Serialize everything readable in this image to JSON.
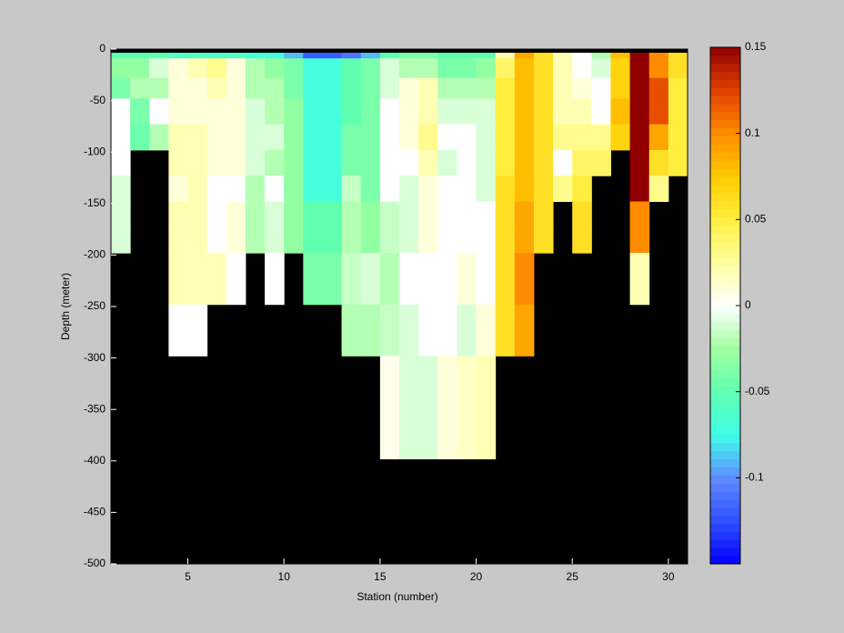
{
  "chart_data": {
    "type": "heatmap",
    "x_label": "Station (number)",
    "y_label": "Depth (meter)",
    "xlim": [
      1,
      31
    ],
    "ylim": [
      -500,
      0
    ],
    "xticks": [
      5,
      10,
      15,
      20,
      25,
      30
    ],
    "yticks": [
      0,
      -50,
      -100,
      -150,
      -200,
      -250,
      -300,
      -350,
      -400,
      -450,
      -500
    ],
    "x_edges": [
      1,
      2,
      3,
      4,
      5,
      6,
      7,
      8,
      9,
      10,
      11,
      12,
      13,
      14,
      15,
      16,
      17,
      18,
      19,
      20,
      21,
      22,
      23,
      24,
      25,
      26,
      27,
      28,
      29,
      30,
      31
    ],
    "y_edges": [
      -3.5,
      -9,
      -28,
      -48,
      -73,
      -98,
      -123,
      -148,
      -173,
      -198,
      -248,
      -298,
      -398
    ],
    "z": [
      [
        -0.05,
        -0.05,
        -0.05,
        -0.06,
        -0.06,
        -0.06,
        -0.06,
        -0.07,
        -0.07,
        -0.09,
        -0.12,
        -0.12,
        -0.11,
        -0.09,
        -0.05,
        -0.04,
        -0.04,
        -0.05,
        -0.05,
        -0.05,
        0.02,
        0.09,
        0.06,
        0.02,
        0,
        -0.02,
        0.08,
        0.15,
        0.1,
        0.06
      ],
      [
        -0.03,
        -0.03,
        -0.01,
        0.01,
        0.02,
        0.03,
        0.01,
        -0.02,
        -0.03,
        -0.04,
        -0.07,
        -0.07,
        -0.05,
        -0.04,
        -0.01,
        -0.02,
        -0.02,
        -0.04,
        -0.04,
        -0.03,
        0.04,
        0.08,
        0.06,
        0.02,
        0,
        -0.01,
        0.07,
        0.15,
        0.1,
        0.06
      ],
      [
        -0.04,
        -0.02,
        -0.02,
        0.01,
        0.01,
        0.02,
        0.01,
        -0.02,
        -0.02,
        -0.04,
        -0.07,
        -0.07,
        -0.05,
        -0.04,
        -0.01,
        0.01,
        0.02,
        -0.02,
        -0.02,
        -0.02,
        0.05,
        0.08,
        0.06,
        0.02,
        0.01,
        0,
        0.07,
        0.15,
        0.12,
        0.05
      ],
      [
        0,
        -0.04,
        0,
        0.01,
        0.01,
        0.01,
        0.01,
        -0.01,
        -0.02,
        -0.03,
        -0.07,
        -0.07,
        -0.05,
        -0.04,
        0,
        0.01,
        0.02,
        -0.01,
        -0.01,
        -0.01,
        0.05,
        0.08,
        0.06,
        0.02,
        0.02,
        0,
        0.08,
        0.15,
        0.12,
        0.05
      ],
      [
        0,
        -0.045,
        -0.02,
        0.02,
        0.02,
        0.01,
        0.01,
        -0.01,
        -0.01,
        -0.03,
        -0.07,
        -0.07,
        -0.04,
        -0.04,
        0,
        0.01,
        0.03,
        0,
        0,
        -0.01,
        0.05,
        0.08,
        0.06,
        0.03,
        0.03,
        0.03,
        0.07,
        0.15,
        0.09,
        0.05
      ],
      [
        0,
        null,
        null,
        0.02,
        0.02,
        0.01,
        0.01,
        -0.01,
        -0.02,
        -0.03,
        -0.07,
        -0.07,
        -0.04,
        -0.04,
        0,
        0,
        0.02,
        -0.01,
        0,
        -0.01,
        0.05,
        0.08,
        0.06,
        0,
        0.04,
        0.04,
        null,
        0.15,
        0.06,
        0.05
      ],
      [
        -0.01,
        null,
        null,
        0.01,
        0.02,
        0,
        0,
        -0.02,
        0,
        -0.03,
        -0.07,
        -0.07,
        -0.015,
        -0.04,
        0,
        -0.01,
        0.01,
        0,
        0,
        -0.01,
        0.06,
        0.08,
        0.06,
        0.03,
        0.05,
        null,
        null,
        0.15,
        0.03,
        null
      ],
      [
        -0.01,
        null,
        null,
        0.02,
        0.02,
        0,
        0.01,
        -0.02,
        -0.01,
        -0.03,
        -0.05,
        -0.05,
        -0.02,
        -0.03,
        -0.015,
        -0.01,
        0.01,
        0,
        0,
        0,
        0.06,
        0.09,
        0.06,
        null,
        0.06,
        null,
        null,
        0.1,
        null,
        null
      ],
      [
        -0.01,
        null,
        null,
        0.02,
        0.02,
        0,
        0.01,
        -0.02,
        -0.01,
        -0.03,
        -0.05,
        -0.05,
        -0.02,
        -0.03,
        -0.015,
        -0.01,
        0.01,
        0,
        0,
        0,
        0.06,
        0.09,
        0.06,
        null,
        0.06,
        null,
        null,
        0.1,
        null,
        null
      ],
      [
        null,
        null,
        null,
        0.02,
        0.02,
        0.02,
        0,
        null,
        0,
        null,
        -0.04,
        -0.04,
        -0.015,
        -0.01,
        -0.02,
        0,
        0,
        0,
        0.01,
        0,
        0.06,
        0.1,
        null,
        null,
        null,
        null,
        null,
        0.02,
        null,
        null
      ],
      [
        null,
        null,
        null,
        0,
        0,
        null,
        null,
        null,
        null,
        null,
        null,
        null,
        -0.02,
        -0.02,
        -0.015,
        -0.01,
        0,
        0,
        -0.01,
        0.01,
        0.06,
        0.09,
        null,
        null,
        null,
        null,
        null,
        null,
        null,
        null
      ],
      [
        null,
        null,
        null,
        null,
        null,
        null,
        null,
        null,
        null,
        null,
        null,
        null,
        null,
        null,
        0.005,
        -0.01,
        -0.01,
        0.01,
        0.015,
        0.02,
        null,
        null,
        null,
        null,
        null,
        null,
        null,
        null,
        null,
        null
      ]
    ],
    "clim": [
      -0.15,
      0.15
    ],
    "cticks": [
      -0.1,
      -0.05,
      0,
      0.05,
      0.1,
      0.15
    ],
    "colormap": [
      "#0000ff",
      "#3050ff",
      "#5f8cff",
      "#40ffe8",
      "#60ffb0",
      "#a0ffa0",
      "#ffffff",
      "#ffffa0",
      "#ffee40",
      "#ffcc00",
      "#ff8c00",
      "#e04000",
      "#900000"
    ],
    "nan_color": "#000000"
  }
}
